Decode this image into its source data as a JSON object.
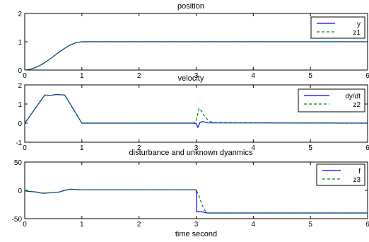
{
  "chart_data": [
    {
      "type": "line",
      "title": "position",
      "xlabel": "",
      "ylabel": "",
      "xlim": [
        0,
        6
      ],
      "ylim": [
        0,
        2
      ],
      "xticks": [
        0,
        1,
        2,
        3,
        4,
        5,
        6
      ],
      "xtick_labels": [
        "0",
        "1",
        "2",
        "3",
        "4",
        "5",
        "6"
      ],
      "yticks": [
        0,
        1,
        2
      ],
      "ytick_labels": [
        "0",
        "1",
        "2"
      ],
      "grid": false,
      "legend_position": "top-right",
      "series": [
        {
          "name": "y",
          "color": "#0000ff",
          "style": "solid",
          "x": [
            0,
            0.1,
            0.2,
            0.3,
            0.4,
            0.5,
            0.6,
            0.7,
            0.8,
            0.9,
            1.0,
            6.0
          ],
          "y": [
            0,
            0.03,
            0.1,
            0.2,
            0.33,
            0.48,
            0.63,
            0.77,
            0.89,
            0.97,
            1.0,
            1.0
          ]
        },
        {
          "name": "z1",
          "color": "#008000",
          "style": "dashed",
          "x": [
            0,
            0.1,
            0.2,
            0.3,
            0.4,
            0.5,
            0.6,
            0.7,
            0.8,
            0.9,
            1.0,
            6.0
          ],
          "y": [
            0,
            0.03,
            0.1,
            0.2,
            0.33,
            0.48,
            0.63,
            0.77,
            0.89,
            0.97,
            1.0,
            1.0
          ]
        }
      ]
    },
    {
      "type": "line",
      "title": "velocity",
      "xlabel": "",
      "ylabel": "",
      "xlim": [
        0,
        6
      ],
      "ylim": [
        -1,
        2
      ],
      "xticks": [
        0,
        1,
        2,
        3,
        4,
        5,
        6
      ],
      "xtick_labels": [
        "0",
        "1",
        "2",
        "3",
        "4",
        "5",
        "6"
      ],
      "yticks": [
        -1,
        0,
        1,
        2
      ],
      "ytick_labels": [
        "-1",
        "0",
        "1",
        "2"
      ],
      "grid": false,
      "legend_position": "top-right",
      "series": [
        {
          "name": "dy/dt",
          "color": "#0000ff",
          "style": "solid",
          "x": [
            0,
            0.05,
            0.35,
            0.45,
            0.55,
            0.7,
            1.0,
            2.95,
            3.0,
            3.03,
            3.07,
            3.12,
            3.2,
            6.0
          ],
          "y": [
            0,
            0.2,
            1.47,
            1.45,
            1.5,
            1.47,
            0,
            0,
            -0.02,
            -0.22,
            0.05,
            0.08,
            0.01,
            0
          ]
        },
        {
          "name": "z2",
          "color": "#008000",
          "style": "dashed",
          "x": [
            0,
            0.05,
            0.35,
            0.45,
            0.55,
            0.7,
            1.0,
            2.95,
            3.0,
            3.05,
            3.1,
            3.15,
            3.22,
            3.3,
            6.0
          ],
          "y": [
            0,
            0.2,
            1.47,
            1.45,
            1.5,
            1.47,
            0,
            0,
            0.1,
            0.78,
            0.6,
            0.35,
            0.12,
            0.03,
            0
          ]
        }
      ]
    },
    {
      "type": "line",
      "title": "disturbance and unknown dyanmics",
      "xlabel": "time second",
      "ylabel": "",
      "xlim": [
        0,
        6
      ],
      "ylim": [
        -50,
        50
      ],
      "xticks": [
        0,
        1,
        2,
        3,
        4,
        5,
        6
      ],
      "xtick_labels": [
        "0",
        "1",
        "2",
        "3",
        "4",
        "5",
        "6"
      ],
      "yticks": [
        -50,
        0,
        50
      ],
      "ytick_labels": [
        "-50",
        "0",
        "50"
      ],
      "grid": false,
      "legend_position": "top-right",
      "series": [
        {
          "name": "f",
          "color": "#0000ff",
          "style": "solid",
          "x": [
            0,
            0.1,
            0.2,
            0.3,
            0.35,
            0.5,
            0.6,
            0.7,
            0.8,
            1.0,
            3.0,
            3.01,
            3.1,
            3.2,
            6.0
          ],
          "y": [
            -1,
            -2,
            -3,
            -5,
            -5,
            -4,
            -3,
            0,
            2,
            1,
            1,
            -38,
            -38,
            -40,
            -40
          ]
        },
        {
          "name": "z3",
          "color": "#008000",
          "style": "dashed",
          "x": [
            0,
            0.1,
            0.2,
            0.3,
            0.35,
            0.5,
            0.6,
            0.7,
            0.8,
            1.0,
            3.0,
            3.05,
            3.1,
            3.15,
            3.2,
            3.25,
            6.0
          ],
          "y": [
            -1,
            -2,
            -3,
            -5,
            -5,
            -4,
            -3,
            0,
            2,
            1,
            1,
            -10,
            -25,
            -35,
            -40,
            -40,
            -40
          ]
        }
      ]
    }
  ]
}
